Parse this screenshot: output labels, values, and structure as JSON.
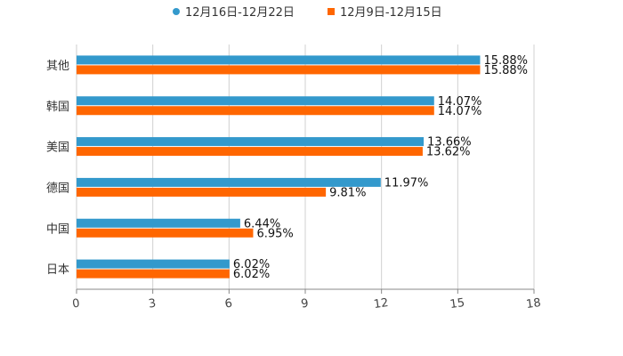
{
  "chart_data": {
    "type": "bar",
    "orientation": "horizontal",
    "title": "",
    "xlabel": "",
    "ylabel": "",
    "categories": [
      "其他",
      "韩国",
      "美国",
      "德国",
      "中国",
      "日本"
    ],
    "series": [
      {
        "name": "12月16日-12月22日",
        "color": "#3399cc",
        "values": [
          15.88,
          14.07,
          13.66,
          11.97,
          6.44,
          6.02
        ],
        "labels": [
          "15.88%",
          "14.07%",
          "13.66%",
          "11.97%",
          "6.44%",
          "6.02%"
        ]
      },
      {
        "name": "12月9日-12月15日",
        "color": "#ff6600",
        "values": [
          15.88,
          14.07,
          13.62,
          9.81,
          6.95,
          6.02
        ],
        "labels": [
          "15.88%",
          "14.07%",
          "13.62%",
          "9.81%",
          "6.95%",
          "6.02%"
        ]
      }
    ],
    "xlim": [
      0,
      18
    ],
    "xticks": [
      "0",
      "3",
      "6",
      "9",
      "12",
      "15",
      "18"
    ],
    "grid": true,
    "legend": "top-center"
  }
}
